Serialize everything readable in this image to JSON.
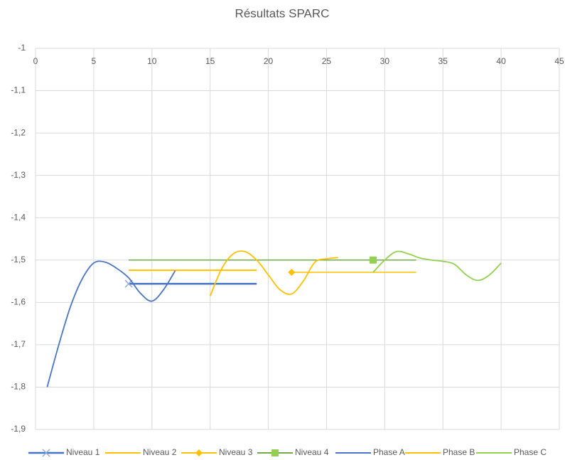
{
  "chart_data": {
    "type": "scatter",
    "title": "Résultats SPARC",
    "xlim": [
      0,
      45
    ],
    "xticks": [
      0,
      5,
      10,
      15,
      20,
      25,
      30,
      35,
      40,
      45
    ],
    "ylim": [
      -1.9,
      -1
    ],
    "yticks": [
      -1,
      {
        "value": -1.1,
        "label": "-1,1"
      },
      {
        "value": -1.2,
        "label": "-1,2"
      },
      {
        "value": -1.3,
        "label": "-1,3"
      },
      {
        "value": -1.4,
        "label": "-1,4"
      },
      {
        "value": -1.5,
        "label": "-1,5"
      },
      {
        "value": -1.6,
        "label": "-1,6"
      },
      {
        "value": -1.7,
        "label": "-1,7"
      },
      {
        "value": -1.8,
        "label": "-1,8"
      },
      {
        "value": -1.9,
        "label": "-1,9"
      }
    ],
    "grid": true,
    "legend": "bottom",
    "series": [
      {
        "name": "Niveau 1",
        "color": "#4472c4",
        "marker": "x",
        "marker_color": "#8faadc",
        "width": 2.5,
        "smooth": false,
        "x": [
          8,
          19
        ],
        "values": [
          -1.556,
          -1.556
        ],
        "marker_x": 8,
        "marker_y": -1.556
      },
      {
        "name": "Niveau 2",
        "color": "#ffc000",
        "marker": "none",
        "width": 2,
        "smooth": false,
        "x": [
          8,
          19
        ],
        "values": [
          -1.524,
          -1.524
        ]
      },
      {
        "name": "Niveau 3",
        "color": "#ffc000",
        "marker": "diamond",
        "width": 1.5,
        "smooth": false,
        "x": [
          22,
          32.7
        ],
        "values": [
          -1.529,
          -1.529
        ],
        "marker_x": 22,
        "marker_y": -1.529
      },
      {
        "name": "Niveau 4",
        "color": "#70ad47",
        "marker": "square",
        "marker_color": "#92d050",
        "width": 1.5,
        "smooth": false,
        "x": [
          8,
          32.7
        ],
        "values": [
          -1.5,
          -1.5
        ],
        "marker_x": 29,
        "marker_y": -1.5
      },
      {
        "name": "Phase A",
        "color": "#4a74c4",
        "marker": "none",
        "width": 1.8,
        "smooth": true,
        "x": [
          1,
          2,
          3,
          4,
          5,
          6,
          7,
          8,
          9,
          10,
          11,
          12
        ],
        "values": [
          -1.8,
          -1.7,
          -1.61,
          -1.545,
          -1.507,
          -1.505,
          -1.52,
          -1.542,
          -1.578,
          -1.597,
          -1.57,
          -1.525
        ]
      },
      {
        "name": "Phase B",
        "color": "#ffc000",
        "marker": "none",
        "width": 1.8,
        "smooth": true,
        "x": [
          15,
          16,
          17,
          18,
          19,
          20,
          21,
          22,
          23,
          24,
          25,
          26
        ],
        "values": [
          -1.585,
          -1.52,
          -1.485,
          -1.48,
          -1.5,
          -1.535,
          -1.57,
          -1.58,
          -1.55,
          -1.505,
          -1.497,
          -1.494
        ]
      },
      {
        "name": "Phase C",
        "color": "#92d050",
        "marker": "none",
        "width": 1.8,
        "smooth": true,
        "x": [
          29,
          30,
          31,
          32,
          33,
          34,
          35,
          36,
          37,
          38,
          39,
          40
        ],
        "values": [
          -1.529,
          -1.5,
          -1.48,
          -1.485,
          -1.495,
          -1.5,
          -1.503,
          -1.51,
          -1.535,
          -1.548,
          -1.535,
          -1.507
        ]
      }
    ]
  }
}
